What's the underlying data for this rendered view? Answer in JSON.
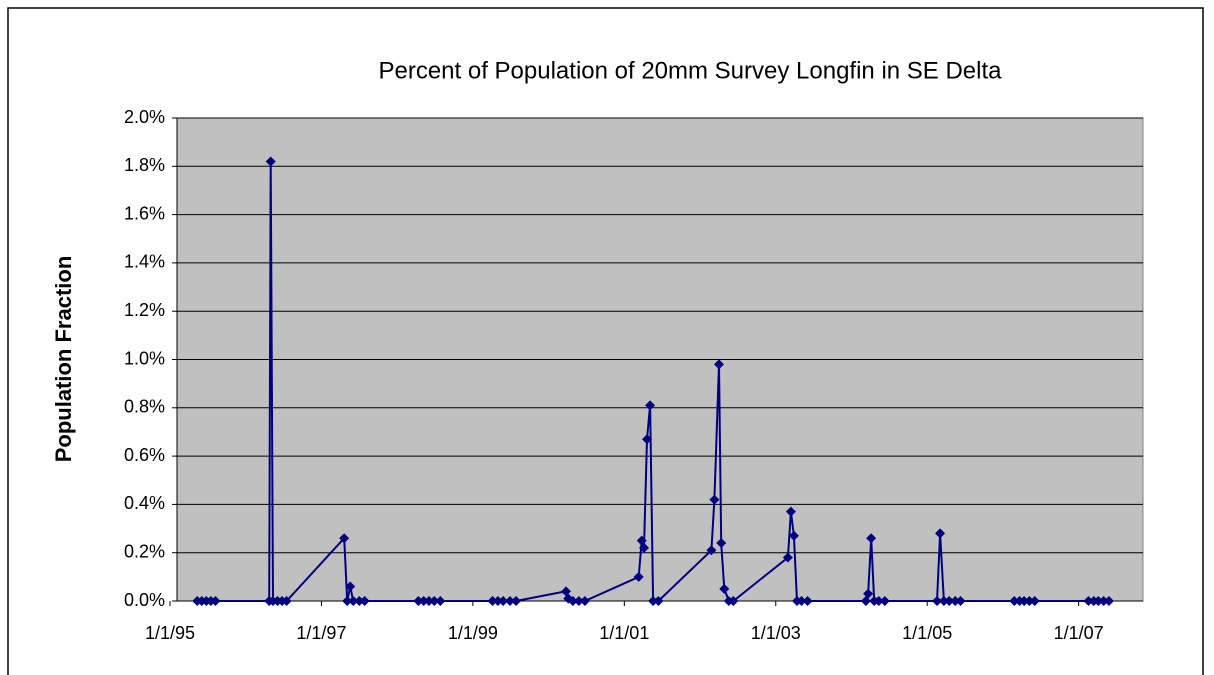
{
  "chart_data": {
    "type": "line",
    "title": "Percent of Population of 20mm Survey Longfin in SE Delta",
    "y_label": "Population Fraction",
    "x": [
      1995.36,
      1995.42,
      1995.48,
      1995.54,
      1995.6,
      1996.31,
      1996.33,
      1996.36,
      1996.42,
      1996.48,
      1996.54,
      1997.3,
      1997.34,
      1997.38,
      1997.42,
      1997.5,
      1997.57,
      1998.28,
      1998.35,
      1998.42,
      1998.49,
      1998.57,
      1999.26,
      1999.33,
      1999.4,
      1999.49,
      1999.57,
      2000.23,
      2000.26,
      2000.32,
      2000.4,
      2000.48,
      2001.19,
      2001.23,
      2001.26,
      2001.3,
      2001.34,
      2001.38,
      2001.45,
      2002.15,
      2002.19,
      2002.25,
      2002.28,
      2002.32,
      2002.38,
      2002.44,
      2003.16,
      2003.2,
      2003.24,
      2003.28,
      2003.34,
      2003.42,
      2004.19,
      2004.22,
      2004.26,
      2004.3,
      2004.36,
      2004.44,
      2005.13,
      2005.17,
      2005.22,
      2005.29,
      2005.37,
      2005.44,
      2006.15,
      2006.22,
      2006.28,
      2006.35,
      2006.42,
      2007.13,
      2007.2,
      2007.26,
      2007.33,
      2007.4
    ],
    "series": [
      {
        "name": "Population Fraction",
        "color": "#000080",
        "values": [
          0,
          0,
          0,
          0,
          0,
          0,
          1.82,
          0,
          0,
          0,
          0,
          0.26,
          0,
          0.06,
          0,
          0,
          0,
          0,
          0,
          0,
          0,
          0,
          0,
          0,
          0,
          0,
          0,
          0.04,
          0.01,
          0,
          0,
          0,
          0.1,
          0.25,
          0.22,
          0.67,
          0.81,
          0,
          0,
          0.21,
          0.42,
          0.98,
          0.24,
          0.05,
          0,
          0,
          0.18,
          0.37,
          0.27,
          0,
          0,
          0,
          0,
          0.03,
          0.26,
          0,
          0,
          0,
          0,
          0.28,
          0,
          0,
          0,
          0,
          0,
          0,
          0,
          0,
          0,
          0,
          0,
          0,
          0,
          0
        ]
      }
    ],
    "xlim": [
      1995,
      2007.85
    ],
    "xticks": [
      {
        "value": 1995,
        "label": "1/1/95"
      },
      {
        "value": 1997,
        "label": "1/1/97"
      },
      {
        "value": 1999,
        "label": "1/1/99"
      },
      {
        "value": 2001,
        "label": "1/1/01"
      },
      {
        "value": 2003,
        "label": "1/1/03"
      },
      {
        "value": 2005,
        "label": "1/1/05"
      },
      {
        "value": 2007,
        "label": "1/1/07"
      }
    ],
    "ylim": [
      0,
      2
    ],
    "yticks": [
      {
        "value": 0,
        "label": "0.0%"
      },
      {
        "value": 0.2,
        "label": "0.2%"
      },
      {
        "value": 0.4,
        "label": "0.4%"
      },
      {
        "value": 0.6,
        "label": "0.6%"
      },
      {
        "value": 0.8,
        "label": "0.8%"
      },
      {
        "value": 1,
        "label": "1.0%"
      },
      {
        "value": 1.2,
        "label": "1.2%"
      },
      {
        "value": 1.4,
        "label": "1.4%"
      },
      {
        "value": 1.6,
        "label": "1.6%"
      },
      {
        "value": 1.8,
        "label": "1.8%"
      },
      {
        "value": 2,
        "label": "2.0%"
      }
    ],
    "grid": true,
    "plot_background": "#c0c0c0"
  }
}
